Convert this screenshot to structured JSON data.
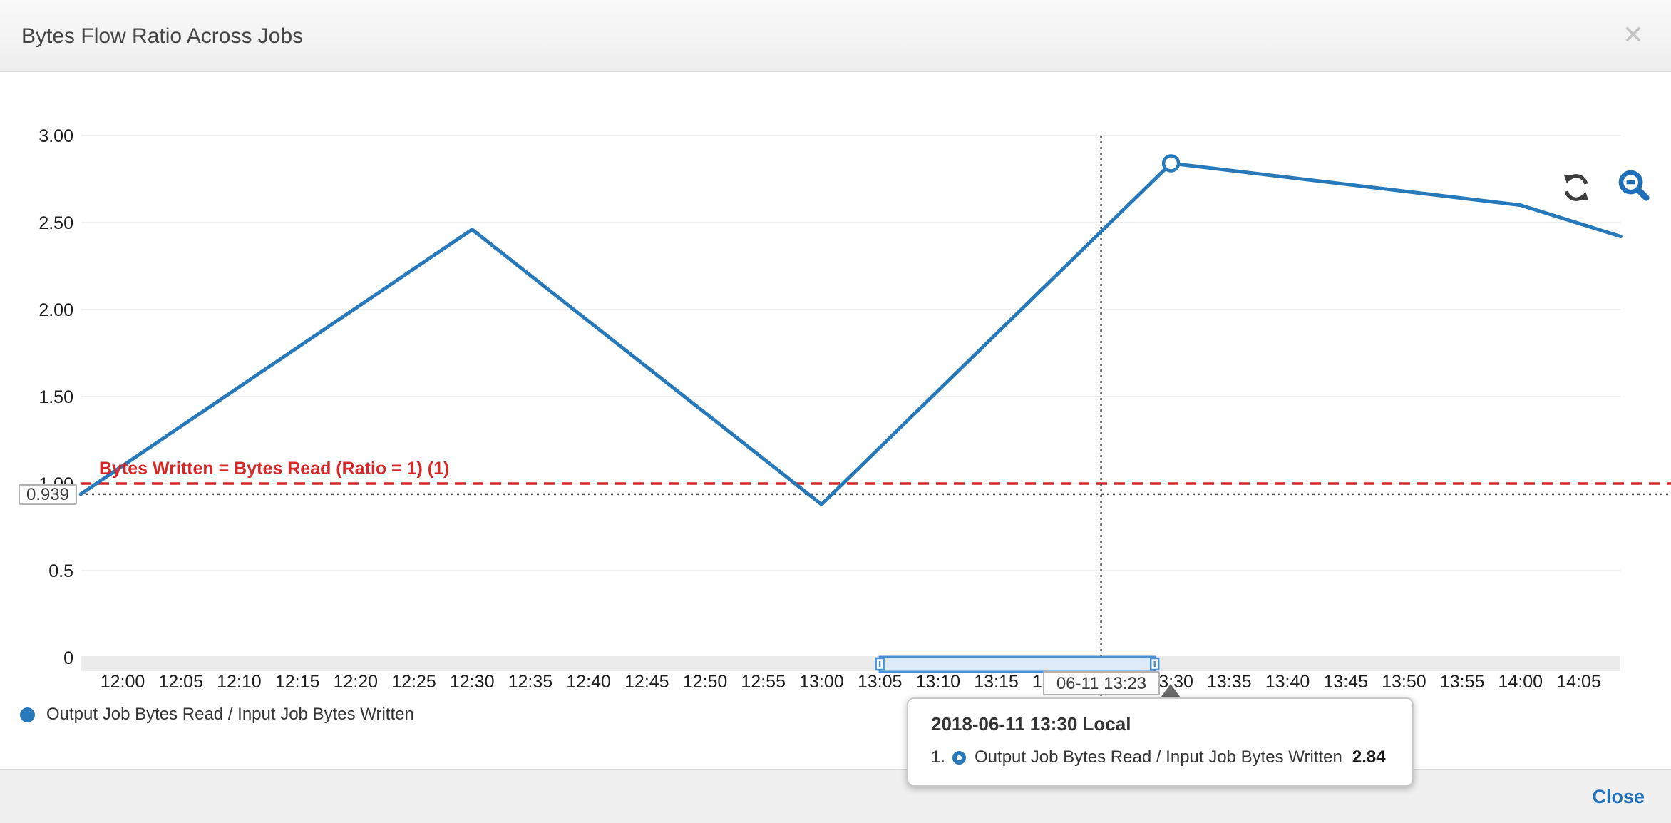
{
  "header": {
    "title": "Bytes Flow Ratio Across Jobs",
    "close_icon": "close"
  },
  "toolbar": {
    "refresh_icon": "refresh",
    "zoom_out_icon": "zoom-out"
  },
  "chart_data": {
    "type": "line",
    "title": "Bytes Flow Ratio Across Jobs",
    "ylim": [
      0,
      3.0
    ],
    "y_ticks": [
      {
        "label": "3.00",
        "value": 3.0
      },
      {
        "label": "2.50",
        "value": 2.5
      },
      {
        "label": "2.00",
        "value": 2.0
      },
      {
        "label": "1.50",
        "value": 1.5
      },
      {
        "label": "1.00",
        "value": 1.0
      },
      {
        "label": "0.5",
        "value": 0.5
      },
      {
        "label": "0",
        "value": 0.0
      }
    ],
    "x_ticks": [
      {
        "label": "12:00",
        "min": 0
      },
      {
        "label": "12:05",
        "min": 5
      },
      {
        "label": "12:10",
        "min": 10
      },
      {
        "label": "12:15",
        "min": 15
      },
      {
        "label": "12:20",
        "min": 20
      },
      {
        "label": "12:25",
        "min": 25
      },
      {
        "label": "12:30",
        "min": 30
      },
      {
        "label": "12:35",
        "min": 35
      },
      {
        "label": "12:40",
        "min": 40
      },
      {
        "label": "12:45",
        "min": 45
      },
      {
        "label": "12:50",
        "min": 50
      },
      {
        "label": "12:55",
        "min": 55
      },
      {
        "label": "13:00",
        "min": 60
      },
      {
        "label": "13:05",
        "min": 65
      },
      {
        "label": "13:10",
        "min": 70
      },
      {
        "label": "13:15",
        "min": 75
      },
      {
        "label": "13:20",
        "min": 80
      },
      {
        "label": "13:25",
        "min": 85
      },
      {
        "label": "13:30",
        "min": 90
      },
      {
        "label": "13:35",
        "min": 95
      },
      {
        "label": "13:40",
        "min": 100
      },
      {
        "label": "13:45",
        "min": 105
      },
      {
        "label": "13:50",
        "min": 110
      },
      {
        "label": "13:55",
        "min": 115
      },
      {
        "label": "14:00",
        "min": 120
      },
      {
        "label": "14:05",
        "min": 125
      }
    ],
    "series": [
      {
        "name": "Output Job Bytes Read / Input Job Bytes Written",
        "color": "#2879b9",
        "points": [
          {
            "min": -3.6,
            "value": 0.939
          },
          {
            "min": 30,
            "value": 2.46
          },
          {
            "min": 60,
            "value": 0.88
          },
          {
            "min": 90,
            "value": 2.84
          },
          {
            "min": 120,
            "value": 2.6
          },
          {
            "min": 128.6,
            "value": 2.42
          }
        ]
      }
    ],
    "hover_point": {
      "series": 0,
      "min": 90,
      "value": 2.84
    },
    "annotation": {
      "label": "Bytes Written = Bytes Read (Ratio = 1) (1)",
      "value": 1.0,
      "color": "#d62728"
    },
    "crosshair": {
      "x_min": 84.0,
      "y_value": 0.939,
      "x_label": "06-11 13:23",
      "y_label": "0.939"
    },
    "brush": {
      "start_min": 65.0,
      "end_min": 88.6
    }
  },
  "legend": {
    "items": [
      {
        "label": "Output Job Bytes Read / Input Job Bytes Written",
        "color": "#2879b9"
      }
    ]
  },
  "tooltip": {
    "title": "2018-06-11 13:30 Local",
    "rows": [
      {
        "index": "1.",
        "label": "Output Job Bytes Read / Input Job Bytes Written",
        "value": "2.84"
      }
    ]
  },
  "footer": {
    "close_label": "Close"
  }
}
